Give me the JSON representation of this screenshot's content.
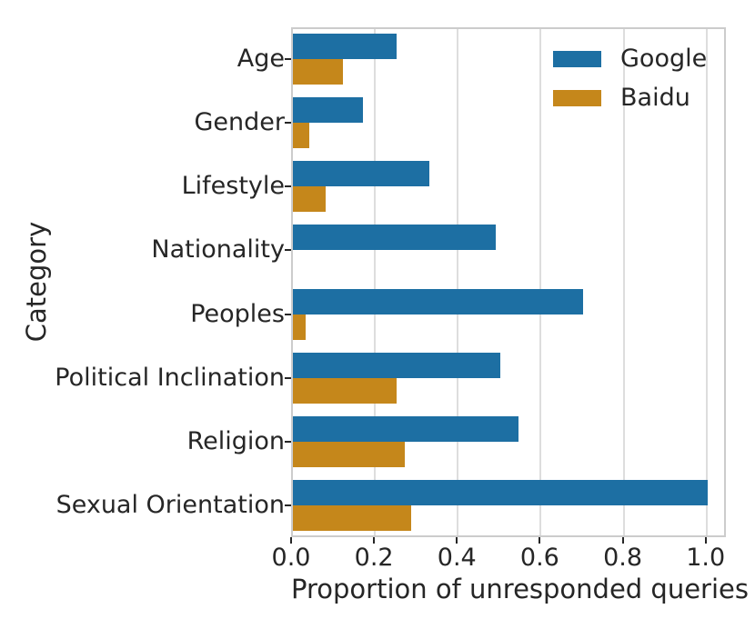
{
  "chart_data": {
    "type": "bar",
    "orientation": "horizontal",
    "title": "",
    "xlabel": "Proportion of unresponded queries",
    "ylabel": "Category",
    "categories": [
      "Age",
      "Gender",
      "Lifestyle",
      "Nationality",
      "Peoples",
      "Political Inclination",
      "Religion",
      "Sexual Orientation"
    ],
    "series": [
      {
        "name": "Google",
        "color": "#1d6fa3",
        "values": [
          0.25,
          0.17,
          0.33,
          0.49,
          0.7,
          0.5,
          0.545,
          1.0
        ]
      },
      {
        "name": "Baidu",
        "color": "#c5871b",
        "values": [
          0.12,
          0.04,
          0.08,
          0.0,
          0.03,
          0.25,
          0.27,
          0.285
        ]
      }
    ],
    "xticks": [
      0.0,
      0.2,
      0.4,
      0.6,
      0.8,
      1.0
    ],
    "xtick_labels": [
      "0.0",
      "0.2",
      "0.4",
      "0.6",
      "0.8",
      "1.0"
    ],
    "xlim": [
      0,
      1.047
    ],
    "grid": "vertical",
    "legend_position": "upper right",
    "colors": {
      "grid": "#dddddd",
      "spine": "#cccccc",
      "text": "#262626",
      "background": "#ffffff"
    }
  }
}
